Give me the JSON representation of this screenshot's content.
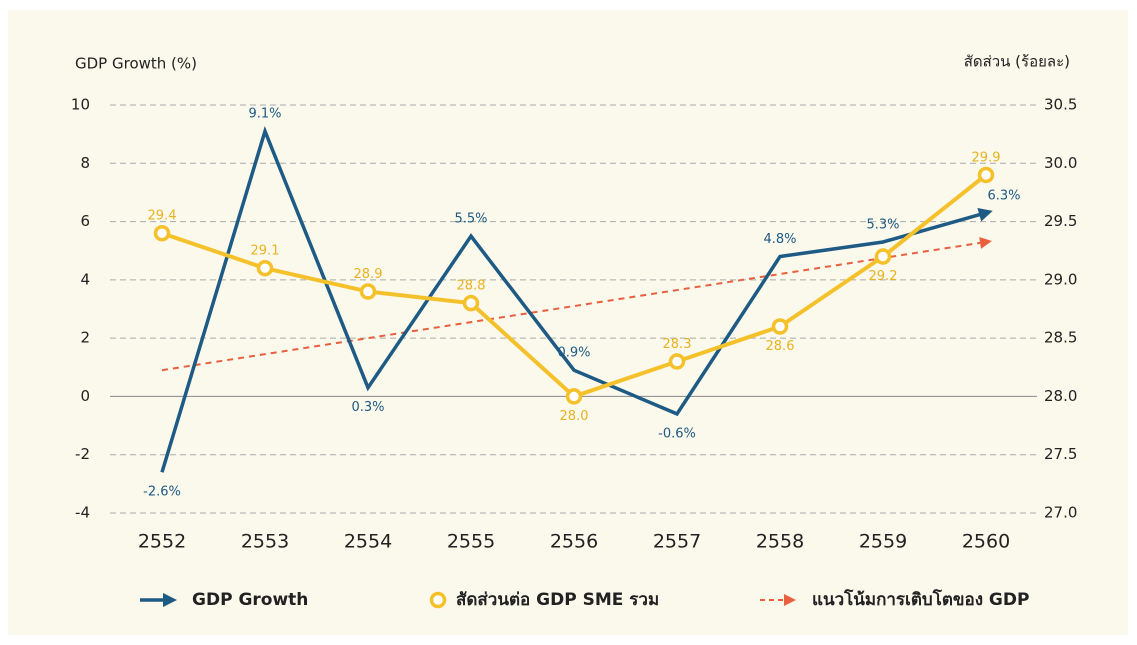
{
  "chart_data": {
    "type": "line",
    "y_label": "GDP Growth (%)",
    "y2_label": "สัดส่วน (ร้อยละ)",
    "categories": [
      "2552",
      "2553",
      "2554",
      "2555",
      "2556",
      "2557",
      "2558",
      "2559",
      "2560"
    ],
    "series": [
      {
        "name": "GDP Growth",
        "color": "#1d5a84",
        "values": [
          -2.6,
          9.1,
          0.3,
          5.5,
          0.9,
          -0.6,
          4.8,
          5.3,
          6.3
        ],
        "value_labels": [
          "-2.6%",
          "9.1%",
          "0.3%",
          "5.5%",
          "0.9%",
          "-0.6%",
          "4.8%",
          "5.3%",
          "6.3%"
        ]
      },
      {
        "name": "สัดส่วนต่อ GDP SME รวม",
        "color": "#f5c12a",
        "axis": "y2",
        "values": [
          29.4,
          29.1,
          28.9,
          28.8,
          28.0,
          28.3,
          28.6,
          29.2,
          29.9
        ],
        "value_labels": [
          "29.4",
          "29.1",
          "28.9",
          "28.8",
          "28.0",
          "28.3",
          "28.6",
          "29.2",
          "29.9"
        ]
      },
      {
        "name": "แนวโน้มการเติบโตของ GDP",
        "color": "#e9603f",
        "values": [
          0.9,
          1.45,
          2.0,
          2.55,
          3.1,
          3.65,
          4.2,
          4.75,
          5.3
        ]
      }
    ],
    "ylim": [
      -4,
      10
    ],
    "yticks": [
      -4,
      -2,
      0,
      2,
      4,
      6,
      8,
      10
    ],
    "y2lim": [
      27,
      30.5
    ],
    "y2ticks": [
      {
        "value": 27,
        "label": "27.0"
      },
      27.5,
      {
        "value": 28,
        "label": "28.0"
      },
      28.5,
      {
        "value": 29,
        "label": "29.0"
      },
      29.5,
      {
        "value": 30,
        "label": "30.0"
      },
      30.5
    ],
    "grid": true,
    "legend": "bottom"
  }
}
